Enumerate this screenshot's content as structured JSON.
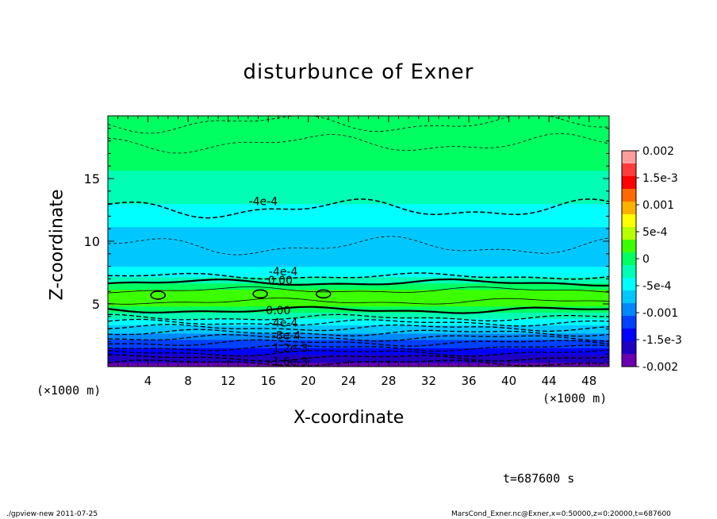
{
  "chart_data": {
    "type": "heatmap",
    "title": "disturbunce of Exner",
    "xlabel": "X-coordinate",
    "ylabel": "Z-coordinate",
    "x_unit": "(×1000 m)",
    "y_unit": "(×1000 m)",
    "xlim": [
      0,
      50
    ],
    "ylim": [
      0,
      20
    ],
    "x_ticks": [
      4,
      8,
      12,
      16,
      20,
      24,
      28,
      32,
      36,
      40,
      44,
      48
    ],
    "y_ticks": [
      5,
      10,
      15
    ],
    "colorbar": {
      "range": [
        -0.002,
        0.002
      ],
      "tick_labels": [
        "0.002",
        "1.5e-3",
        "0.001",
        "5e-4",
        "0",
        "-5e-4",
        "-0.001",
        "-1.5e-3",
        "-0.002"
      ],
      "tick_values": [
        0.002,
        0.0015,
        0.001,
        0.0005,
        0,
        -0.0005,
        -0.001,
        -0.0015,
        -0.002
      ],
      "colors": [
        "#ff9d9d",
        "#ff3b3b",
        "#ff0000",
        "#ff6a00",
        "#ffb000",
        "#ffff00",
        "#b8ff00",
        "#3cff00",
        "#00ff60",
        "#00ffb4",
        "#00ffff",
        "#00c8ff",
        "#0088ff",
        "#0040ff",
        "#0000ff",
        "#2000c0",
        "#6a00b0"
      ]
    },
    "z_profile": [
      {
        "z": 0.0,
        "value": -0.00185
      },
      {
        "z": 0.5,
        "value": -0.0017
      },
      {
        "z": 1.0,
        "value": -0.0015
      },
      {
        "z": 1.5,
        "value": -0.0013
      },
      {
        "z": 2.0,
        "value": -0.0011
      },
      {
        "z": 2.5,
        "value": -0.0009
      },
      {
        "z": 3.0,
        "value": -0.0007
      },
      {
        "z": 3.5,
        "value": -0.0005
      },
      {
        "z": 4.0,
        "value": -0.0003
      },
      {
        "z": 4.5,
        "value": 0.0
      },
      {
        "z": 5.0,
        "value": 0.0002
      },
      {
        "z": 5.5,
        "value": 0.0003
      },
      {
        "z": 6.0,
        "value": 0.0002
      },
      {
        "z": 6.5,
        "value": 0.0
      },
      {
        "z": 7.0,
        "value": -0.0003
      },
      {
        "z": 8.0,
        "value": -0.0006
      },
      {
        "z": 9.0,
        "value": -0.00075
      },
      {
        "z": 10.0,
        "value": -0.0007
      },
      {
        "z": 11.0,
        "value": -0.0006
      },
      {
        "z": 12.0,
        "value": -0.0005
      },
      {
        "z": 13.0,
        "value": -0.00035
      },
      {
        "z": 14.0,
        "value": -0.0002
      },
      {
        "z": 16.0,
        "value": -0.0001
      },
      {
        "z": 18.0,
        "value": -5e-05
      },
      {
        "z": 20.0,
        "value": -0.0001
      }
    ],
    "contour_labels": [
      {
        "text": "-4e-4",
        "x": 15.5,
        "z": 13.2
      },
      {
        "text": "-4e-4",
        "x": 17.5,
        "z": 7.6
      },
      {
        "text": "0.00",
        "x": 17.2,
        "z": 6.9
      },
      {
        "text": "0.00",
        "x": 17.0,
        "z": 4.5
      },
      {
        "text": "-4e-4",
        "x": 17.5,
        "z": 3.5
      },
      {
        "text": "-8e-4",
        "x": 17.8,
        "z": 2.5
      },
      {
        "text": "-1.2e-3",
        "x": 18.0,
        "z": 1.5
      },
      {
        "text": "-1.6e-3",
        "x": 18.0,
        "z": 0.4
      }
    ]
  },
  "time_label": "t=687600 s",
  "footer_left": "./gpview-new   2011-07-25",
  "footer_right": "MarsCond_Exner.nc@Exner,x=0:50000,z=0:20000,t=687600"
}
